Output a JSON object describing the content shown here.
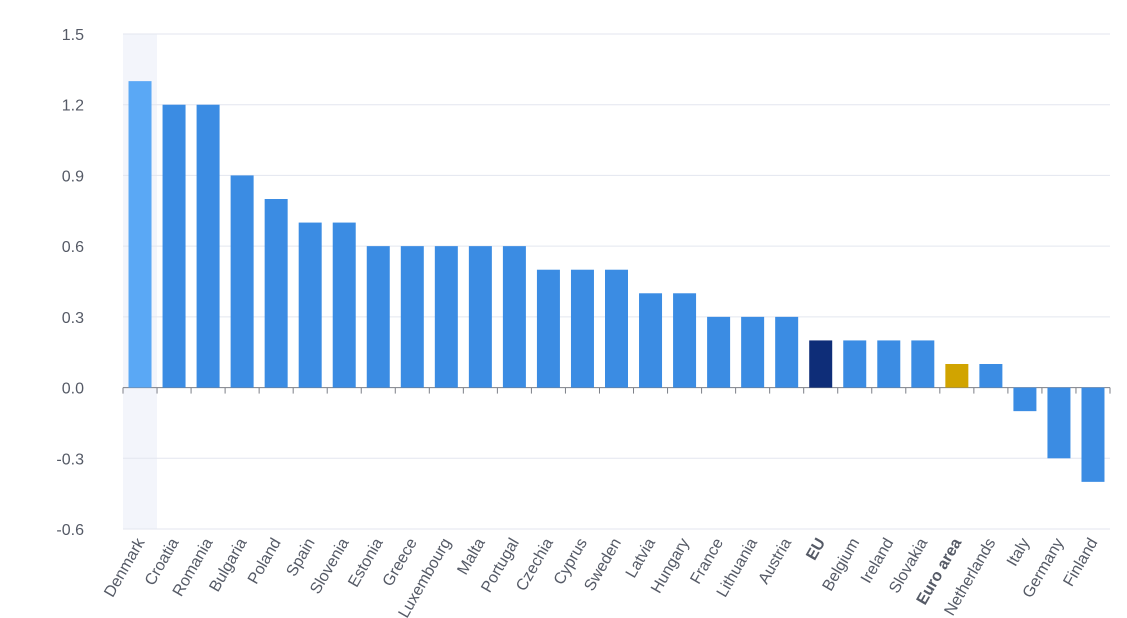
{
  "chart_data": {
    "type": "bar",
    "categories": [
      "Denmark",
      "Croatia",
      "Romania",
      "Bulgaria",
      "Poland",
      "Spain",
      "Slovenia",
      "Estonia",
      "Greece",
      "Luxembourg",
      "Malta",
      "Portugal",
      "Czechia",
      "Cyprus",
      "Sweden",
      "Latvia",
      "Hungary",
      "France",
      "Lithuania",
      "Austria",
      "EU",
      "Belgium",
      "Ireland",
      "Slovakia",
      "Euro area",
      "Netherlands",
      "Italy",
      "Germany",
      "Finland"
    ],
    "values": [
      1.3,
      1.2,
      1.2,
      0.9,
      0.8,
      0.7,
      0.7,
      0.6,
      0.6,
      0.6,
      0.6,
      0.6,
      0.5,
      0.5,
      0.5,
      0.4,
      0.4,
      0.3,
      0.3,
      0.3,
      0.2,
      0.2,
      0.2,
      0.2,
      0.1,
      0.1,
      -0.1,
      -0.3,
      -0.4
    ],
    "bold_categories": [
      "EU",
      "Euro area"
    ],
    "highlighted_category": "Denmark",
    "yticks": [
      "1.5",
      "1.2",
      "0.9",
      "0.6",
      "0.3",
      "0.0",
      "-0.3",
      "-0.6"
    ],
    "ylim": [
      -0.6,
      1.5
    ],
    "grid": true,
    "colors": {
      "default": "#3b8ce3",
      "highlight": "#5aa8f5",
      "eu": "#0e2d78",
      "euro_area": "#d1a400",
      "hover_band": "#f3f5fb"
    }
  }
}
